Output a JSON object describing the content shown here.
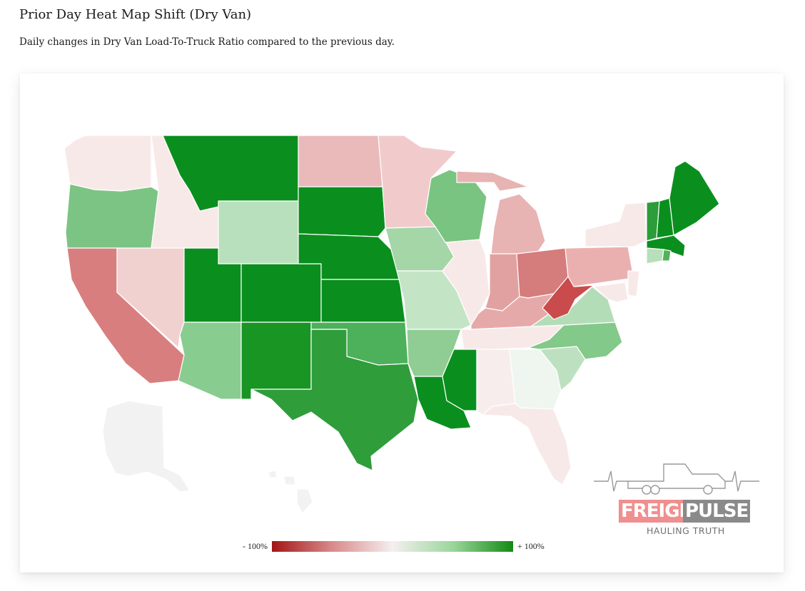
{
  "header": {
    "title": "Prior Day Heat Map Shift (Dry Van)",
    "subtitle": "Daily changes in Dry Van Load-To-Truck Ratio compared to the previous day."
  },
  "legend": {
    "min_label": "- 100%",
    "max_label": "+ 100%",
    "scale_colors": [
      "#a31515",
      "#f5efef",
      "#138a13"
    ]
  },
  "logo": {
    "word1": "FREIGHT",
    "word2": "PULSE",
    "tagline": "HAULING TRUTH"
  },
  "colors": {
    "strong_green": "#0a8f1e",
    "strong_red": "#c94b4b",
    "neutral": "#f6e6e6",
    "no_data": "#f2f2f2"
  }
}
